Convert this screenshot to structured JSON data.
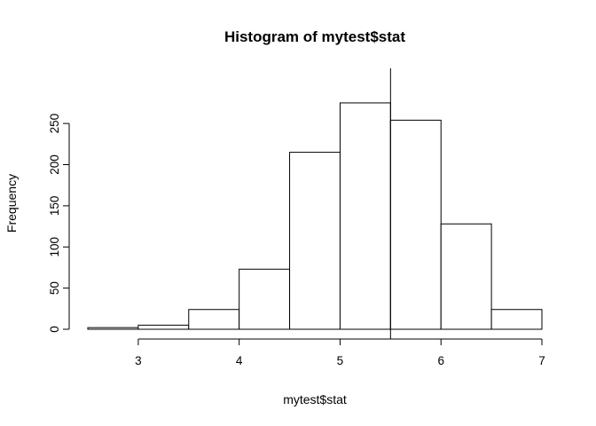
{
  "chart_data": {
    "type": "bar",
    "title": "Histogram of mytest$stat",
    "xlabel": "mytest$stat",
    "ylabel": "Frequency",
    "bins": [
      {
        "start": 2.5,
        "end": 3.0,
        "count": 2
      },
      {
        "start": 3.0,
        "end": 3.5,
        "count": 5
      },
      {
        "start": 3.5,
        "end": 4.0,
        "count": 24
      },
      {
        "start": 4.0,
        "end": 4.5,
        "count": 73
      },
      {
        "start": 4.5,
        "end": 5.0,
        "count": 215
      },
      {
        "start": 5.0,
        "end": 5.5,
        "count": 275
      },
      {
        "start": 5.5,
        "end": 6.0,
        "count": 254
      },
      {
        "start": 6.0,
        "end": 6.5,
        "count": 128
      },
      {
        "start": 6.5,
        "end": 7.0,
        "count": 24
      }
    ],
    "x_ticks": [
      "3",
      "4",
      "5",
      "6",
      "7"
    ],
    "y_ticks": [
      "0",
      "50",
      "100",
      "150",
      "200",
      "250"
    ],
    "xlim": [
      2.5,
      7
    ],
    "ylim": [
      0,
      275
    ],
    "vline_x": 5.5,
    "grid": false,
    "colors": {
      "bar_fill": "#ffffff",
      "bar_stroke": "#000000"
    }
  }
}
